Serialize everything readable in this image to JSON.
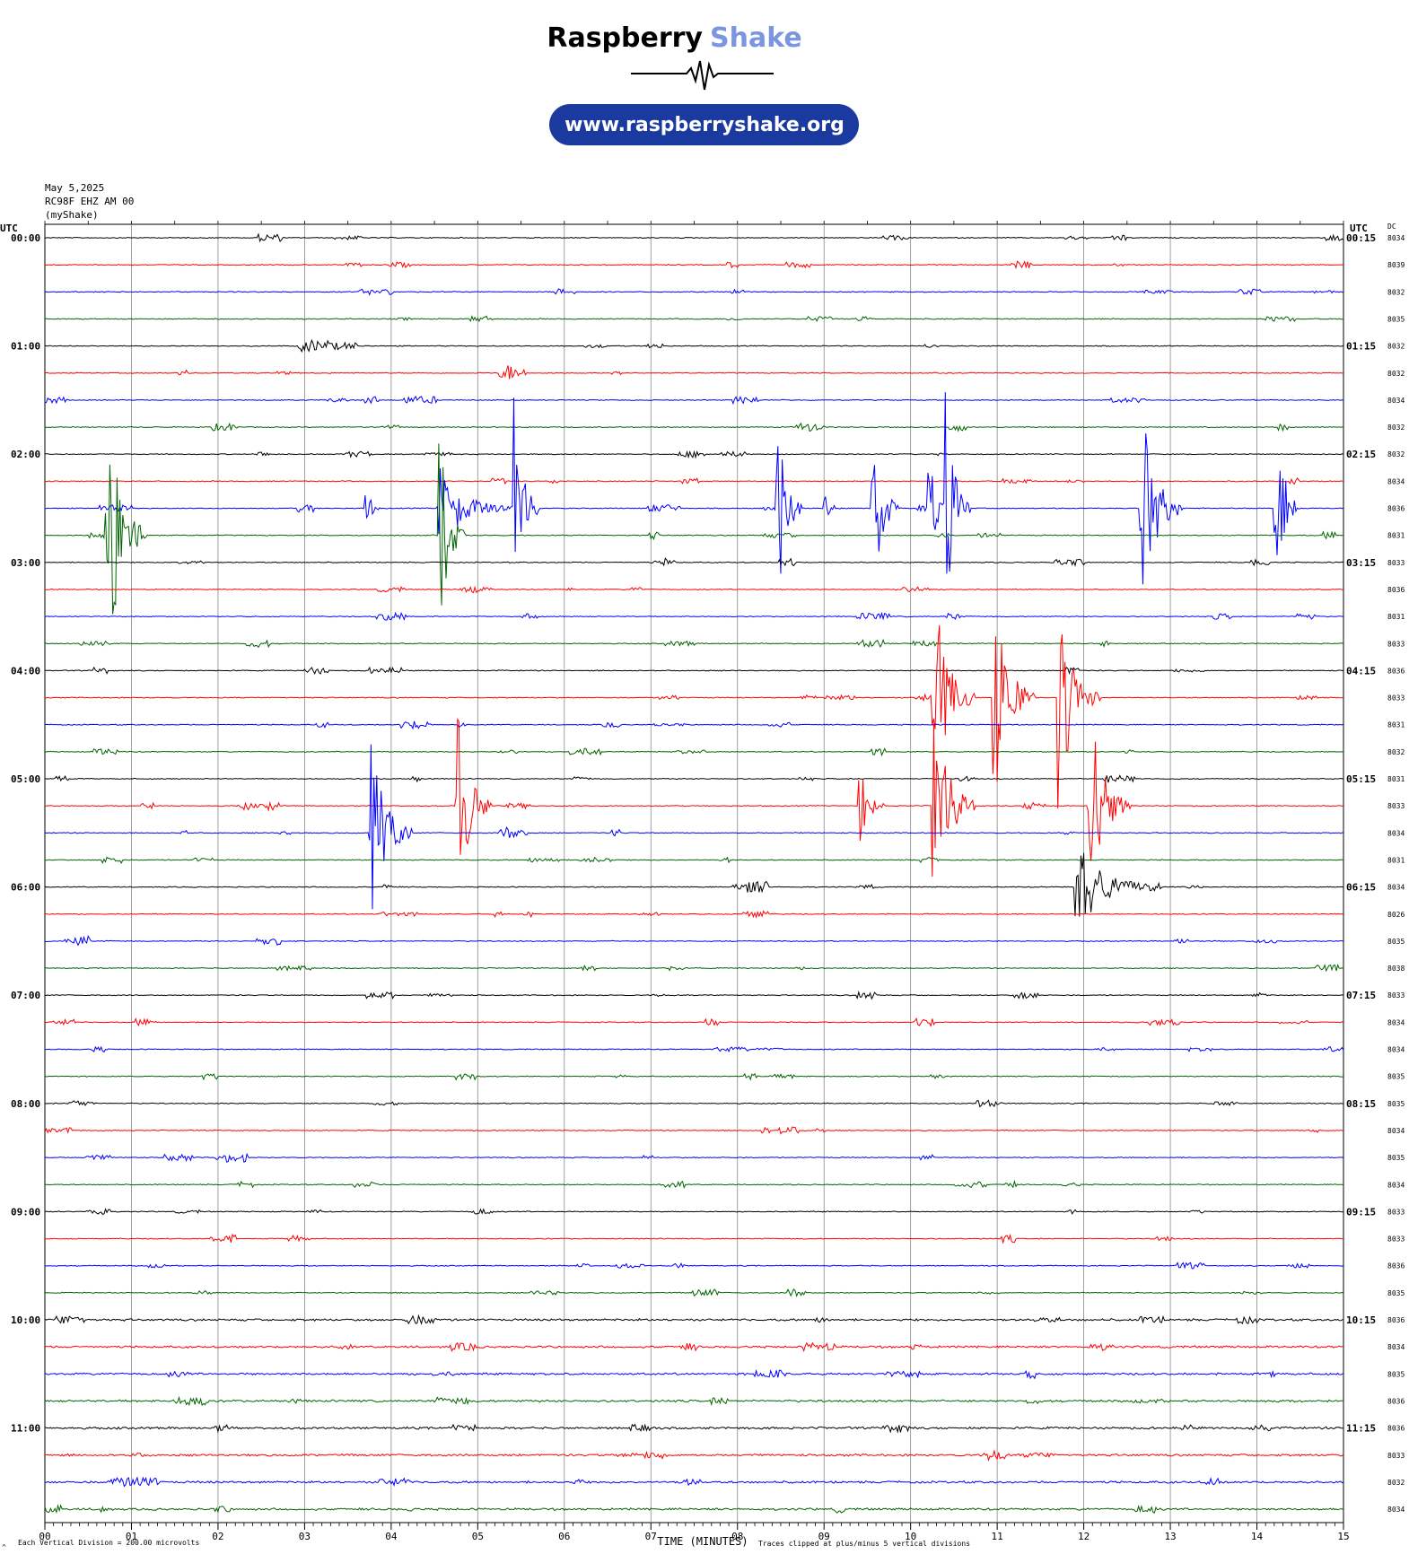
{
  "header": {
    "brand_word1": "Raspberry",
    "brand_word2": "Shake",
    "url_text": "www.raspberryshake.org",
    "brand_color_dark": "#000000",
    "brand_color_light": "#7b96e0",
    "pill_color": "#1a3aa0"
  },
  "meta": {
    "date": "May 5,2025",
    "station": "RC98F EHZ AM 00",
    "network": "(myShake)"
  },
  "footer": {
    "division_note": "Each Vertical Division =  200.00 microvolts",
    "clip_note": "Traces clipped at plus/minus 5 vertical divisions",
    "corner_mark": "^"
  },
  "chart_data": {
    "type": "line",
    "title": "",
    "xlabel": "TIME (MINUTES)",
    "left_axis_label": "UTC",
    "right_axis_label": "UTC",
    "dc_label": "DC",
    "xlim": [
      0,
      15
    ],
    "x_ticks": [
      "00",
      "01",
      "02",
      "03",
      "04",
      "05",
      "06",
      "07",
      "08",
      "09",
      "10",
      "11",
      "12",
      "13",
      "14",
      "15"
    ],
    "grid": true,
    "trace_colors": [
      "#000000",
      "#ff0000",
      "#0000ff",
      "#006400"
    ],
    "left_hour_labels": [
      "00:00",
      "01:00",
      "02:00",
      "03:00",
      "04:00",
      "05:00",
      "06:00",
      "07:00",
      "08:00",
      "09:00",
      "10:00",
      "11:00"
    ],
    "right_hour_labels": [
      "00:15",
      "01:15",
      "02:15",
      "03:15",
      "04:15",
      "05:15",
      "06:15",
      "07:15",
      "08:15",
      "09:15",
      "10:15",
      "11:15"
    ],
    "dc_offsets": [
      "8034",
      "8039",
      "8032",
      "8035",
      "8032",
      "8032",
      "8034",
      "8032",
      "8032",
      "8034",
      "8036",
      "8031",
      "8033",
      "8036",
      "8031",
      "8033",
      "8036",
      "8033",
      "8031",
      "8032",
      "8031",
      "8033",
      "8034",
      "8031",
      "8034",
      "8026",
      "8035",
      "8038",
      "8033",
      "8034",
      "8034",
      "8035",
      "8035",
      "8034",
      "8035",
      "8034",
      "8033",
      "8033",
      "8036",
      "8035",
      "8036",
      "8034",
      "8035",
      "8036",
      "8036",
      "8033",
      "8032",
      "8034"
    ],
    "events": [
      {
        "row": 11,
        "minute": 0.7,
        "amp": 6.5,
        "dur": 0.5
      },
      {
        "row": 10,
        "minute": 3.7,
        "amp": 1.0,
        "dur": 0.2
      },
      {
        "row": 10,
        "minute": 4.55,
        "amp": 1.8,
        "dur": 0.9
      },
      {
        "row": 11,
        "minute": 4.55,
        "amp": 5.0,
        "dur": 0.3
      },
      {
        "row": 10,
        "minute": 5.4,
        "amp": 6.0,
        "dur": 0.3
      },
      {
        "row": 10,
        "minute": 8.45,
        "amp": 5.0,
        "dur": 0.3
      },
      {
        "row": 10,
        "minute": 9.0,
        "amp": 0.8,
        "dur": 0.2
      },
      {
        "row": 10,
        "minute": 9.55,
        "amp": 5.0,
        "dur": 0.3
      },
      {
        "row": 10,
        "minute": 10.2,
        "amp": 5.0,
        "dur": 0.2
      },
      {
        "row": 10,
        "minute": 10.4,
        "amp": 5.0,
        "dur": 0.3
      },
      {
        "row": 10,
        "minute": 12.65,
        "amp": 5.0,
        "dur": 0.5
      },
      {
        "row": 10,
        "minute": 14.2,
        "amp": 5.0,
        "dur": 0.3
      },
      {
        "row": 17,
        "minute": 10.25,
        "amp": 5.0,
        "dur": 0.5
      },
      {
        "row": 17,
        "minute": 10.95,
        "amp": 5.0,
        "dur": 0.5
      },
      {
        "row": 17,
        "minute": 11.7,
        "amp": 5.0,
        "dur": 0.5
      },
      {
        "row": 22,
        "minute": 3.75,
        "amp": 5.0,
        "dur": 0.5
      },
      {
        "row": 21,
        "minute": 4.75,
        "amp": 5.0,
        "dur": 0.4
      },
      {
        "row": 21,
        "minute": 9.4,
        "amp": 2.0,
        "dur": 0.3
      },
      {
        "row": 21,
        "minute": 10.25,
        "amp": 5.0,
        "dur": 0.5
      },
      {
        "row": 21,
        "minute": 12.05,
        "amp": 5.0,
        "dur": 0.5
      },
      {
        "row": 24,
        "minute": 11.9,
        "amp": 2.0,
        "dur": 1.0
      }
    ]
  }
}
